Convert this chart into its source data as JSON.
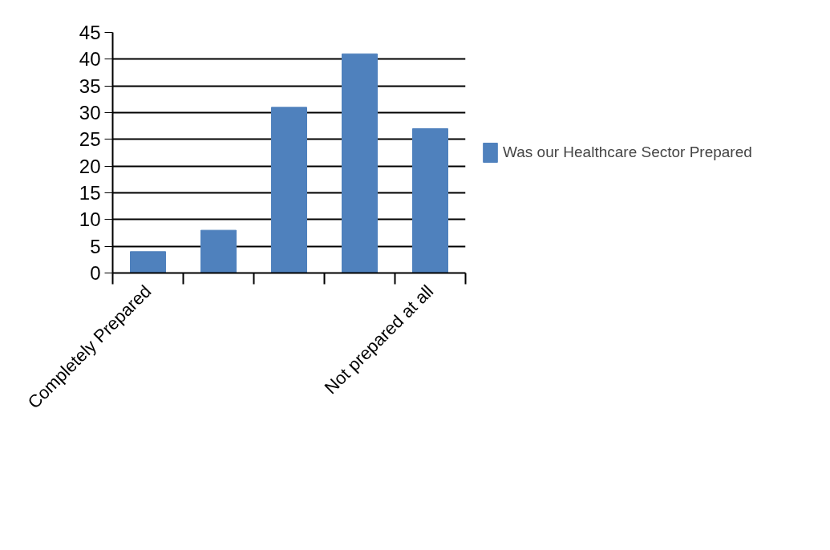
{
  "chart_data": {
    "type": "bar",
    "categories": [
      "Completely Prepared",
      null,
      null,
      null,
      "Not prepared at all"
    ],
    "series": [
      {
        "name": "Was our Healthcare Sector Prepared",
        "color": "#4f81bd",
        "values": [
          4,
          8,
          31,
          41,
          27
        ]
      }
    ],
    "ylim": [
      0,
      45
    ],
    "yticks": [
      0,
      5,
      10,
      15,
      20,
      25,
      30,
      35,
      40,
      45
    ],
    "grid": "y",
    "legend": "right"
  }
}
